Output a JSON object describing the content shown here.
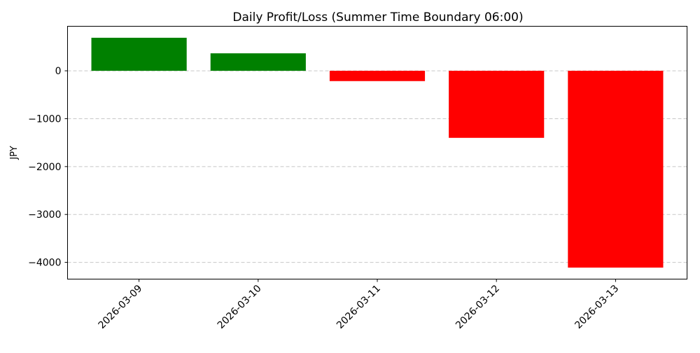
{
  "chart_data": {
    "type": "bar",
    "title": "Daily Profit/Loss (Summer Time Boundary 06:00)",
    "xlabel": "",
    "ylabel": "JPY",
    "categories": [
      "2026-03-09",
      "2026-03-10",
      "2026-03-11",
      "2026-03-12",
      "2026-03-13"
    ],
    "values": [
      690,
      365,
      -215,
      -1400,
      -4110
    ],
    "colors": {
      "positive": "#008000",
      "negative": "#ff0000"
    },
    "ylim": [
      -4350,
      930
    ],
    "yticks": [
      0,
      -1000,
      -2000,
      -3000,
      -4000
    ],
    "ytick_labels": [
      "0",
      "−1000",
      "−2000",
      "−3000",
      "−4000"
    ],
    "grid": "y-dashed",
    "legend": "none"
  }
}
